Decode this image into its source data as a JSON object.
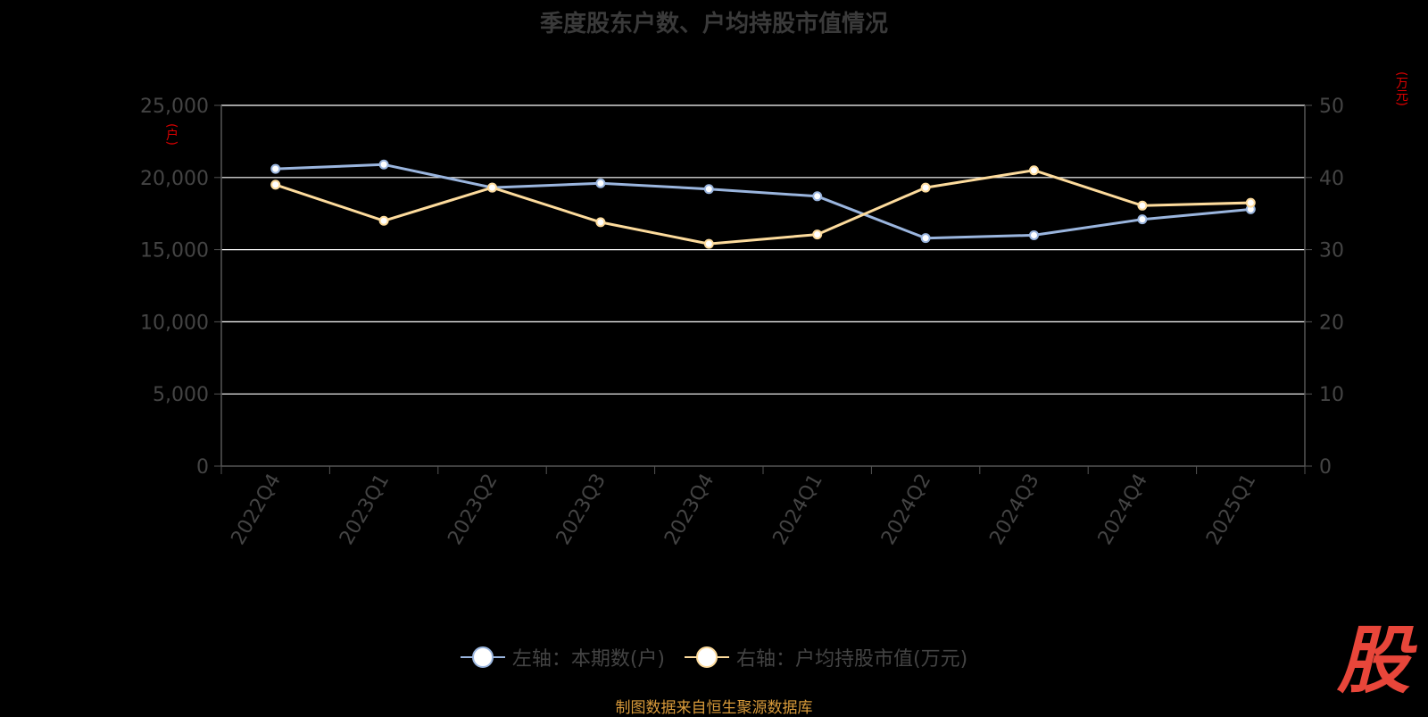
{
  "title": "季度股东户数、户均持股市值情况",
  "units": {
    "left": "(户)",
    "right": "(万元)"
  },
  "legend": {
    "left_series": "左轴：本期数(户)",
    "right_series": "右轴：户均持股市值(万元)"
  },
  "source": "制图数据来自恒生聚源数据库",
  "logo_text": "股",
  "colors": {
    "left_series": "#9ab5de",
    "right_series": "#fddb9c",
    "grid": "#ffffff",
    "axis": "#555555",
    "tick_text": "#444444"
  },
  "chart_data": {
    "type": "line",
    "categories": [
      "2022Q4",
      "2023Q1",
      "2023Q2",
      "2023Q3",
      "2023Q4",
      "2024Q1",
      "2024Q2",
      "2024Q3",
      "2024Q4",
      "2025Q1"
    ],
    "series": [
      {
        "name": "左轴：本期数(户)",
        "axis": "left",
        "values": [
          20600,
          20900,
          19300,
          19600,
          19200,
          18700,
          15800,
          16000,
          17100,
          17800
        ]
      },
      {
        "name": "右轴：户均持股市值(万元)",
        "axis": "right",
        "values": [
          39.0,
          34.0,
          38.6,
          33.8,
          30.8,
          32.1,
          38.6,
          41.0,
          36.1,
          36.5
        ]
      }
    ],
    "y_left": {
      "ylim": [
        0,
        25000
      ],
      "ticks": [
        "0",
        "5,000",
        "10,000",
        "15,000",
        "20,000",
        "25,000"
      ]
    },
    "y_right": {
      "ylim": [
        0,
        50
      ],
      "ticks": [
        "0",
        "10",
        "20",
        "30",
        "40",
        "50"
      ]
    },
    "grid": true,
    "legend_position": "bottom"
  }
}
